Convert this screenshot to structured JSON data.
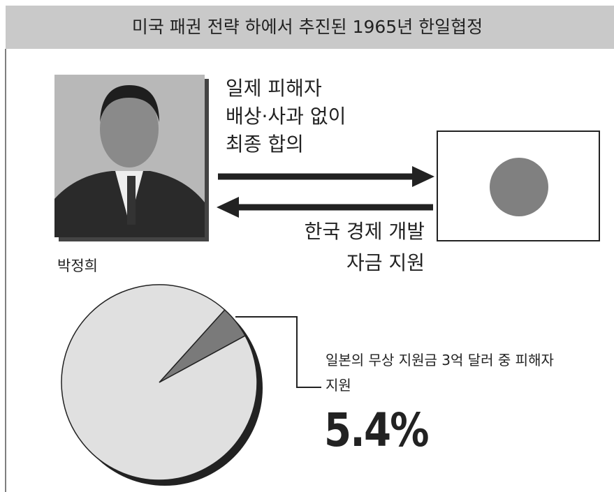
{
  "header": {
    "title": "미국 패권 전략 하에서 추진된 1965년 한일협정"
  },
  "photo": {
    "caption": "박정희"
  },
  "arrow_right": {
    "lines": [
      "일제 피해자",
      "배상·사과 없이",
      "최종 합의"
    ]
  },
  "arrow_left": {
    "lines": [
      "한국 경제 개발",
      "자금 지원"
    ]
  },
  "chart_data": {
    "type": "pie",
    "categories": [
      "일본의 무상 지원금 3억 달러 중 피해자 지원",
      null
    ],
    "values": [
      5.4,
      94.6
    ],
    "value_labels": [
      "5.4%",
      null
    ],
    "colors": [
      "#7a7a7a",
      "#e0e0e0"
    ]
  }
}
